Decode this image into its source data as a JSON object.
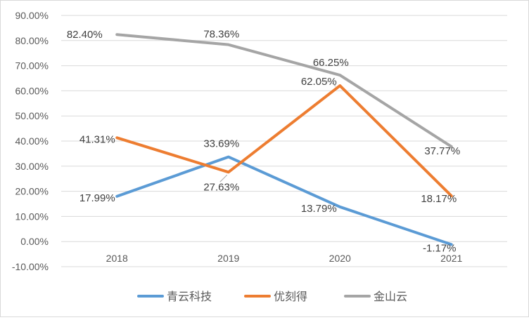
{
  "chart_data": {
    "type": "line",
    "title": "",
    "xlabel": "",
    "ylabel": "",
    "categories": [
      "2018",
      "2019",
      "2020",
      "2021"
    ],
    "ylim": [
      -10,
      90
    ],
    "ytick_step": 10,
    "ytick_labels": [
      "-10.00%",
      "0.00%",
      "10.00%",
      "20.00%",
      "30.00%",
      "40.00%",
      "50.00%",
      "60.00%",
      "70.00%",
      "80.00%",
      "90.00%"
    ],
    "grid": true,
    "legend_position": "bottom",
    "series": [
      {
        "name": "青云科技",
        "color": "#5b9bd5",
        "values": [
          17.99,
          33.69,
          13.79,
          -1.17
        ],
        "labels": [
          "17.99%",
          "33.69%",
          "13.79%",
          "-1.17%"
        ]
      },
      {
        "name": "优刻得",
        "color": "#ed7d31",
        "values": [
          41.31,
          27.63,
          62.05,
          18.17
        ],
        "labels": [
          "41.31%",
          "27.63%",
          "62.05%",
          "18.17%"
        ]
      },
      {
        "name": "金山云",
        "color": "#a5a5a5",
        "values": [
          82.4,
          78.36,
          66.25,
          37.77
        ],
        "labels": [
          "82.40%",
          "78.36%",
          "66.25%",
          "37.77%"
        ]
      }
    ]
  }
}
